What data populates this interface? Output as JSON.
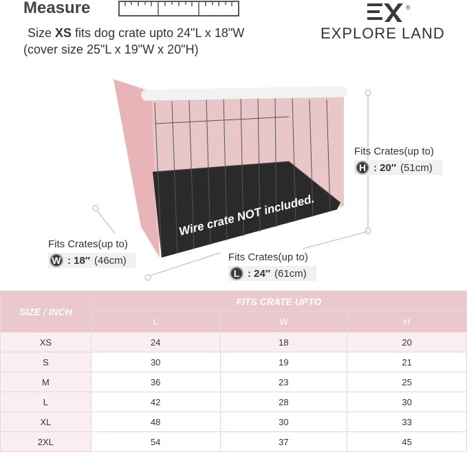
{
  "header": {
    "measure_label": "Measure"
  },
  "description": {
    "prefix": "Size ",
    "size": "XS",
    "suffix": " fits dog crate upto 24\"L x 18\"W",
    "cover_size": "(cover size 25\"L x 19\"W x 20\"H)"
  },
  "brand": {
    "name": "EXPLORE LAND",
    "mark": "EX",
    "registered": "®"
  },
  "image": {
    "overlay_text": "Wire crate NOT included."
  },
  "dimensions": {
    "height": {
      "heading": "Fits Crates(up to)",
      "letter": "H",
      "value": ": 20″",
      "metric": "(51cm)"
    },
    "width": {
      "heading": "Fits Crates(up to)",
      "letter": "W",
      "value": ": 18″",
      "metric": "(46cm)"
    },
    "length": {
      "heading": "Fits Crates(up to)",
      "letter": "L",
      "value": ": 24″",
      "metric": "(61cm)"
    }
  },
  "table": {
    "size_header": "SIZE / INCH",
    "group_header": "FITS CRATE UPTO",
    "columns": [
      "L",
      "W",
      "H"
    ],
    "rows": [
      {
        "size": "XS",
        "L": "24",
        "W": "18",
        "H": "20"
      },
      {
        "size": "S",
        "L": "30",
        "W": "19",
        "H": "21"
      },
      {
        "size": "M",
        "L": "36",
        "W": "23",
        "H": "25"
      },
      {
        "size": "L",
        "L": "42",
        "W": "28",
        "H": "30"
      },
      {
        "size": "XL",
        "L": "48",
        "W": "30",
        "H": "33"
      },
      {
        "size": "2XL",
        "L": "54",
        "W": "37",
        "H": "45"
      }
    ]
  },
  "colors": {
    "pink_header": "#ebc8ce",
    "pink_light": "#fbeef0",
    "cover_pink": "#e8b4b8"
  }
}
